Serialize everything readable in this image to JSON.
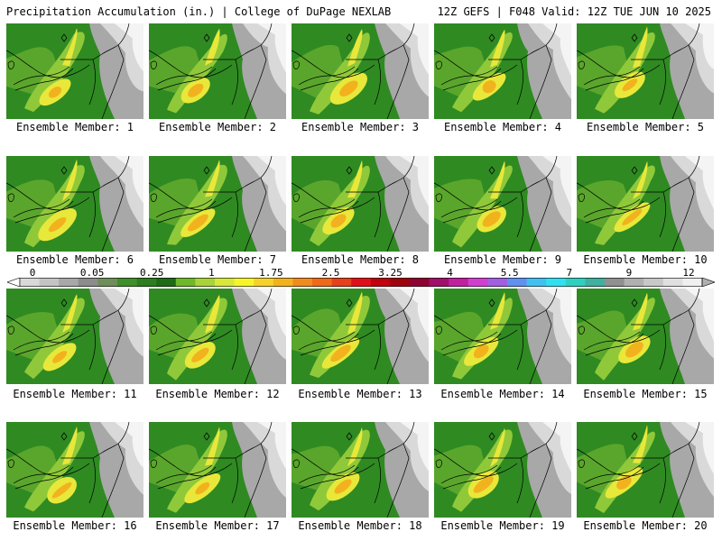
{
  "header": {
    "left": "Precipitation Accumulation (in.) | College of DuPage NEXLAB",
    "right": "12Z GEFS | F048 Valid: 12Z TUE JUN 10 2025"
  },
  "panels": [
    {
      "label": "Ensemble Member: 1"
    },
    {
      "label": "Ensemble Member: 2"
    },
    {
      "label": "Ensemble Member: 3"
    },
    {
      "label": "Ensemble Member: 4"
    },
    {
      "label": "Ensemble Member: 5"
    },
    {
      "label": "Ensemble Member: 6"
    },
    {
      "label": "Ensemble Member: 7"
    },
    {
      "label": "Ensemble Member: 8"
    },
    {
      "label": "Ensemble Member: 9"
    },
    {
      "label": "Ensemble Member: 10"
    },
    {
      "label": "Ensemble Member: 11"
    },
    {
      "label": "Ensemble Member: 12"
    },
    {
      "label": "Ensemble Member: 13"
    },
    {
      "label": "Ensemble Member: 14"
    },
    {
      "label": "Ensemble Member: 15"
    },
    {
      "label": "Ensemble Member: 16"
    },
    {
      "label": "Ensemble Member: 17"
    },
    {
      "label": "Ensemble Member: 18"
    },
    {
      "label": "Ensemble Member: 19"
    },
    {
      "label": "Ensemble Member: 20"
    }
  ],
  "colorbar": {
    "tick_labels": [
      "0",
      "0.05",
      "0.25",
      "1",
      "1.75",
      "2.5",
      "3.25",
      "4",
      "5.5",
      "7",
      "9",
      "12"
    ],
    "colors": [
      "#d9d9d9",
      "#c4c4c4",
      "#a8a8a8",
      "#8c8c8c",
      "#6e8f5a",
      "#3f8f2a",
      "#2e7d1e",
      "#1f6b15",
      "#6fb82a",
      "#a8d43a",
      "#d8e83a",
      "#f5f52a",
      "#f5d22a",
      "#f2b21e",
      "#f08c1e",
      "#ee6a1a",
      "#e8401a",
      "#e0101a",
      "#c00010",
      "#a0000c",
      "#900030",
      "#a0106a",
      "#c020a0",
      "#d040d0",
      "#a060e0",
      "#6090f0",
      "#40c0f0",
      "#30e0f0",
      "#30d0c0",
      "#40b0a0",
      "#909090",
      "#b0b0b0",
      "#c8c8c8",
      "#e0e0e0",
      "#f0f0f0"
    ]
  }
}
